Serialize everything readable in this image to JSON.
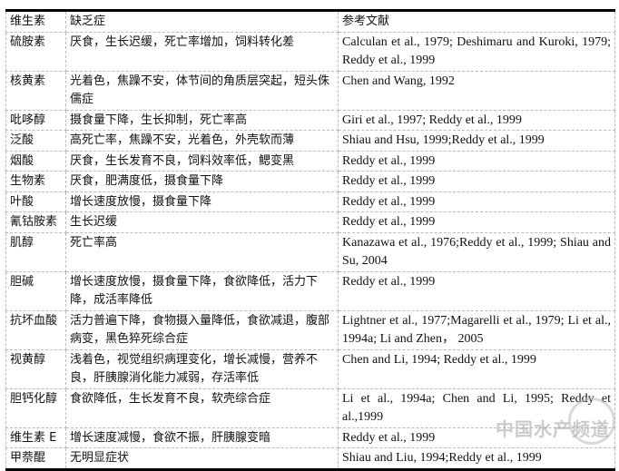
{
  "header": {
    "vitamin": "维生素",
    "deficiency": "缺乏症",
    "references": "参考文献"
  },
  "rows": [
    {
      "vitamin": "硫胺素",
      "deficiency": "厌食，生长迟缓，死亡率增加，饲料转化差",
      "references": "Calculan et al., 1979; Deshimaru and Kuroki, 1979; Reddy et al., 1999"
    },
    {
      "vitamin": "核黄素",
      "deficiency": "光着色，焦躁不安，体节间的角质层突起，短头侏儒症",
      "references": "Chen and Wang, 1992"
    },
    {
      "vitamin": "吡哆醇",
      "deficiency": "摄食量下降，生长抑制，死亡率高",
      "references": "Giri et al., 1997; Reddy et al., 1999"
    },
    {
      "vitamin": "泛酸",
      "deficiency": "高死亡率，焦躁不安，光着色，外壳软而薄",
      "references": "Shiau and Hsu, 1999;Reddy et al., 1999"
    },
    {
      "vitamin": "烟酸",
      "deficiency": "厌食，生长发育不良，饲料效率低，鳃变黑",
      "references": "Reddy et al., 1999"
    },
    {
      "vitamin": "生物素",
      "deficiency": "厌食，肥满度低，摄食量下降",
      "references": "Reddy et al., 1999"
    },
    {
      "vitamin": "叶酸",
      "deficiency": "增长速度放慢，摄食量下降",
      "references": "Reddy et al., 1999"
    },
    {
      "vitamin": "氰钴胺素",
      "deficiency": "生长迟缓",
      "references": "Reddy et al., 1999"
    },
    {
      "vitamin": "肌醇",
      "deficiency": "死亡率高",
      "references": "Kanazawa et al., 1976;Reddy et al., 1999; Shiau and Su, 2004"
    },
    {
      "vitamin": "胆碱",
      "deficiency": "增长速度放慢，摄食量下降，食欲降低，活力下降，成活率降低",
      "references": "Reddy et al., 1999"
    },
    {
      "vitamin": "抗坏血酸",
      "deficiency": "活力普遍下降，食物摄入量降低，食欲减退，腹部病变，黑色猝死综合症",
      "references": "Lightner et al., 1977;Magarelli et al., 1979; Li et al., 1994a; Li and Zhen， 2005"
    },
    {
      "vitamin": "视黄醇",
      "deficiency": "浅着色，视觉组织病理变化，增长减慢，营养不良，肝胰腺消化能力减弱，存活率低",
      "references": "Chen and Li, 1994; Reddy et al., 1999"
    },
    {
      "vitamin": "胆钙化醇",
      "deficiency": "食欲降低，生长发育不良，软壳综合症",
      "references": "Li et al., 1994a; Chen and Li, 1995; Reddy et al.,1999"
    },
    {
      "vitamin": "维生素 E",
      "deficiency": "增长速度减慢，食欲不振，肝胰腺变暗",
      "references": "Reddy et al., 1999"
    },
    {
      "vitamin": "甲萘醌",
      "deficiency": "无明显症状",
      "references": "Shiau and Liu, 1994;Reddy et al., 1999"
    }
  ],
  "watermark": "中国水产频道"
}
